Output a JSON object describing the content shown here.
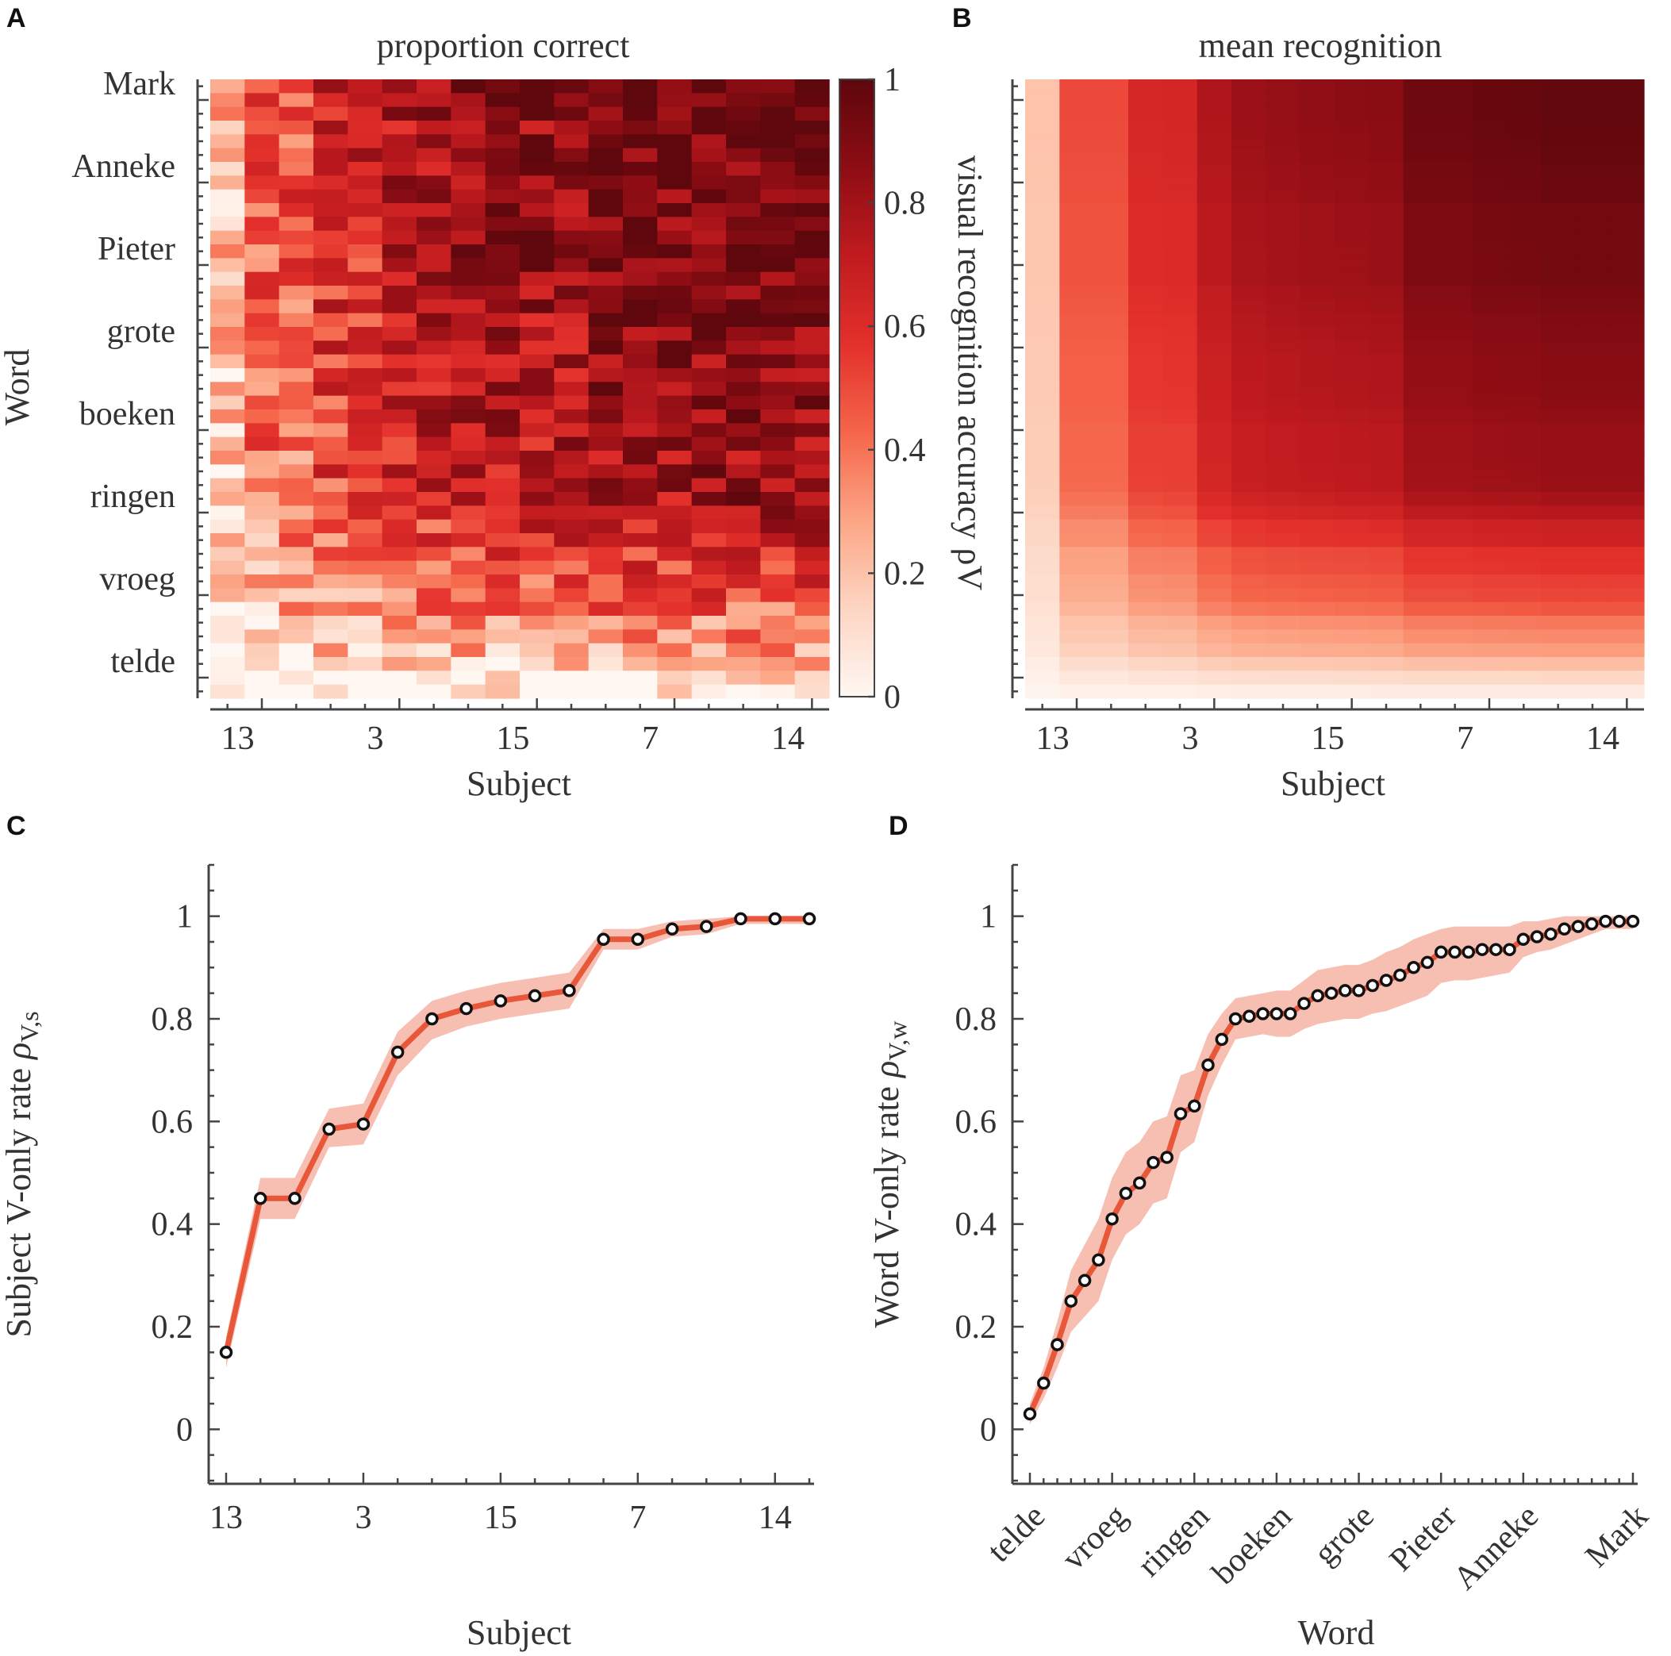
{
  "figure": {
    "panels": [
      "A",
      "B",
      "C",
      "D"
    ]
  },
  "colors": {
    "line": "#e8573a",
    "band": "#f4a898",
    "marker_face": "#ffffff",
    "marker_edge": "#111111",
    "colormap": [
      "#fff7f2",
      "#fdd5c2",
      "#fca585",
      "#f5654a",
      "#e3302b",
      "#c01b1f",
      "#8e0d14",
      "#5e070d"
    ]
  },
  "chart_data": [
    {
      "panel": "A",
      "type": "heatmap",
      "title": "proportion correct",
      "xlabel": "Subject",
      "ylabel": "Word",
      "x_tick_labels": [
        "13",
        "3",
        "15",
        "7",
        "14"
      ],
      "x_tick_columns": [
        1,
        5,
        9,
        13,
        17
      ],
      "n_subjects": 18,
      "n_words": 45,
      "y_tick_labels": [
        "Mark",
        "Anneke",
        "Pieter",
        "grote",
        "boeken",
        "ringen",
        "vroeg",
        "telde"
      ],
      "y_tick_rows": [
        1,
        7,
        13,
        19,
        25,
        31,
        37,
        43
      ],
      "colorbar_ticks": [
        "0",
        "0.2",
        "0.4",
        "0.6",
        "0.8",
        "1"
      ],
      "clim": [
        0,
        1
      ],
      "note": "cell value ~ subject rate x word rate with noise (subjects sorted by rate, words sorted by rate)"
    },
    {
      "panel": "B",
      "type": "heatmap",
      "title": "mean recognition",
      "xlabel": "Subject",
      "ylabel": "visual recognition accuracy ρV",
      "x_tick_labels": [
        "13",
        "3",
        "15",
        "7",
        "14"
      ],
      "x_tick_columns": [
        1,
        5,
        9,
        13,
        17
      ],
      "clim": [
        0,
        1
      ],
      "note": "cell value = subject rate x word rate"
    },
    {
      "panel": "C",
      "type": "line",
      "xlabel": "Subject",
      "ylabel_main": "Subject V-only rate ",
      "ylabel_symbol": "ρ",
      "ylabel_sub": "V,s",
      "ylim": [
        -0.1,
        1.1
      ],
      "y_ticks": [
        "0",
        "0.2",
        "0.4",
        "0.6",
        "0.8",
        "1"
      ],
      "x_tick_labels": [
        "13",
        "3",
        "15",
        "7",
        "14"
      ],
      "x_tick_positions": [
        1,
        5,
        9,
        13,
        17
      ],
      "x": [
        1,
        2,
        3,
        4,
        5,
        6,
        7,
        8,
        9,
        10,
        11,
        12,
        13,
        14,
        15,
        16,
        17,
        18
      ],
      "values": [
        0.15,
        0.45,
        0.45,
        0.585,
        0.595,
        0.735,
        0.8,
        0.82,
        0.835,
        0.845,
        0.855,
        0.955,
        0.955,
        0.975,
        0.98,
        0.995,
        0.995,
        0.995
      ],
      "lower": [
        0.12,
        0.41,
        0.41,
        0.55,
        0.555,
        0.69,
        0.76,
        0.785,
        0.8,
        0.81,
        0.82,
        0.935,
        0.935,
        0.96,
        0.965,
        0.985,
        0.985,
        0.985
      ],
      "upper": [
        0.18,
        0.49,
        0.49,
        0.625,
        0.635,
        0.775,
        0.835,
        0.855,
        0.87,
        0.88,
        0.89,
        0.975,
        0.975,
        0.99,
        0.995,
        1.0,
        1.0,
        1.0
      ]
    },
    {
      "panel": "D",
      "type": "line",
      "xlabel": "Word",
      "ylabel_main": "Word V-only rate ",
      "ylabel_symbol": "ρ",
      "ylabel_sub": "V,w",
      "ylim": [
        -0.1,
        1.1
      ],
      "y_ticks": [
        "0",
        "0.2",
        "0.4",
        "0.6",
        "0.8",
        "1"
      ],
      "x_tick_labels": [
        "telde",
        "vroeg",
        "ringen",
        "boeken",
        "grote",
        "Pieter",
        "Anneke",
        "Mark"
      ],
      "x_tick_positions": [
        1,
        7,
        13,
        19,
        25,
        31,
        37,
        45
      ],
      "x": [
        1,
        2,
        3,
        4,
        5,
        6,
        7,
        8,
        9,
        10,
        11,
        12,
        13,
        14,
        15,
        16,
        17,
        18,
        19,
        20,
        21,
        22,
        23,
        24,
        25,
        26,
        27,
        28,
        29,
        30,
        31,
        32,
        33,
        34,
        35,
        36,
        37,
        38,
        39,
        40,
        41,
        42,
        43,
        44,
        45
      ],
      "values": [
        0.03,
        0.09,
        0.165,
        0.25,
        0.29,
        0.33,
        0.41,
        0.46,
        0.48,
        0.52,
        0.53,
        0.615,
        0.63,
        0.71,
        0.76,
        0.8,
        0.805,
        0.81,
        0.81,
        0.81,
        0.83,
        0.845,
        0.85,
        0.855,
        0.855,
        0.865,
        0.875,
        0.885,
        0.9,
        0.91,
        0.93,
        0.93,
        0.93,
        0.935,
        0.935,
        0.935,
        0.955,
        0.96,
        0.965,
        0.975,
        0.98,
        0.985,
        0.99,
        0.99,
        0.99
      ],
      "lower": [
        0.01,
        0.06,
        0.12,
        0.19,
        0.22,
        0.25,
        0.33,
        0.38,
        0.4,
        0.44,
        0.45,
        0.54,
        0.56,
        0.65,
        0.71,
        0.76,
        0.765,
        0.77,
        0.765,
        0.765,
        0.78,
        0.79,
        0.795,
        0.8,
        0.8,
        0.81,
        0.815,
        0.825,
        0.835,
        0.845,
        0.87,
        0.875,
        0.875,
        0.88,
        0.885,
        0.89,
        0.92,
        0.93,
        0.935,
        0.945,
        0.955,
        0.965,
        0.975,
        0.975,
        0.975
      ],
      "upper": [
        0.05,
        0.12,
        0.21,
        0.31,
        0.36,
        0.41,
        0.49,
        0.54,
        0.56,
        0.6,
        0.61,
        0.69,
        0.7,
        0.77,
        0.81,
        0.84,
        0.845,
        0.85,
        0.855,
        0.855,
        0.875,
        0.895,
        0.9,
        0.905,
        0.905,
        0.915,
        0.93,
        0.94,
        0.955,
        0.965,
        0.975,
        0.98,
        0.98,
        0.98,
        0.98,
        0.98,
        0.99,
        0.99,
        0.995,
        1.0,
        1.0,
        1.0,
        1.0,
        1.0,
        1.0
      ]
    }
  ]
}
